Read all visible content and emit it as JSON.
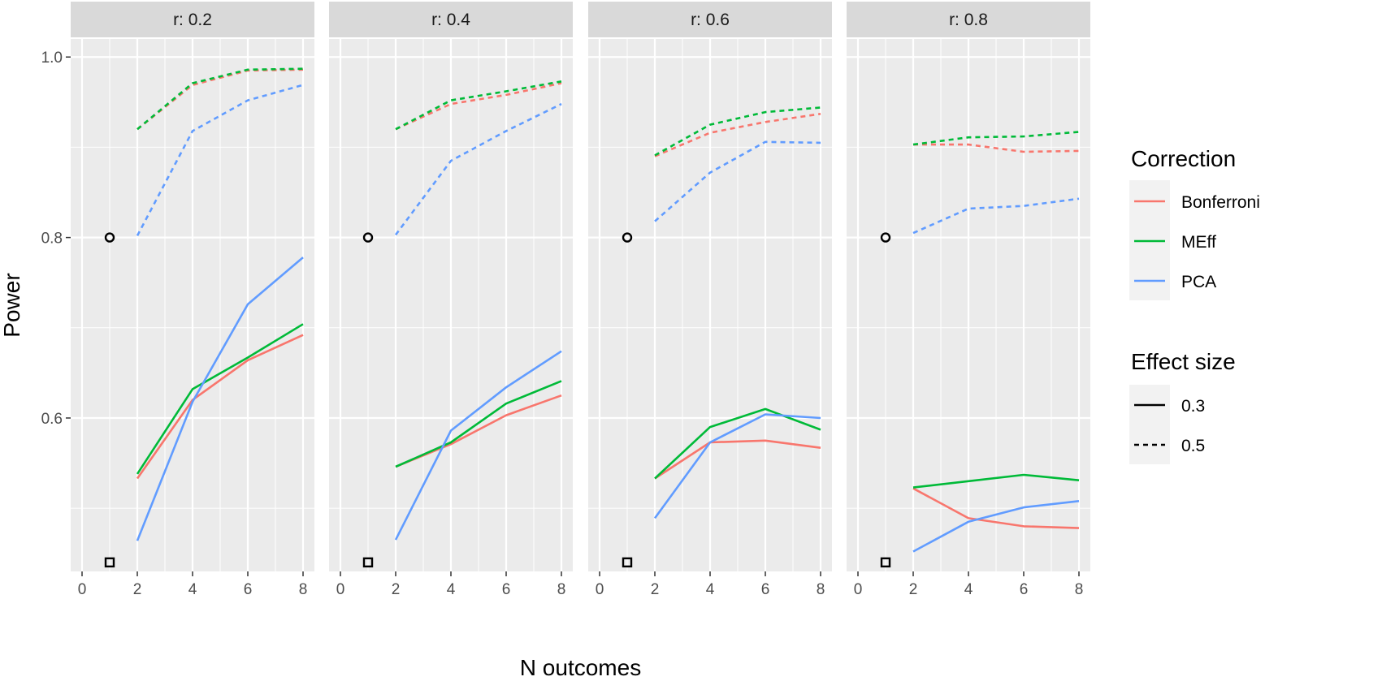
{
  "chart_data": {
    "type": "line",
    "xlabel": "N outcomes",
    "ylabel": "Power",
    "xlim": [
      0,
      8
    ],
    "ylim": [
      0.43,
      1.02
    ],
    "x_ticks": [
      0,
      2,
      4,
      6,
      8
    ],
    "y_ticks": [
      0.6,
      0.8,
      1.0
    ],
    "y_tick_labels": [
      "0.6",
      "0.8",
      "1.0"
    ],
    "grid": true,
    "legend_position": "right",
    "colors": {
      "Bonferroni": "#F8766D",
      "MEff": "#00BA38",
      "PCA": "#619CFF",
      "panel_bg": "#EBEBEB",
      "strip_bg": "#D9D9D9",
      "grid": "#FFFFFF"
    },
    "legend": {
      "correction_title": "Correction",
      "correction_items": [
        "Bonferroni",
        "MEff",
        "PCA"
      ],
      "effect_title": "Effect size",
      "effect_items": [
        {
          "label": "0.3",
          "linetype": "solid"
        },
        {
          "label": "0.5",
          "linetype": "dashed"
        }
      ]
    },
    "panels": [
      {
        "label": "r: 0.2",
        "single_outcome": [
          {
            "x": 1,
            "y": 0.8,
            "shape": "circle"
          },
          {
            "x": 1,
            "y": 0.44,
            "shape": "square"
          }
        ],
        "series": [
          {
            "correction": "Bonferroni",
            "effect": "0.3",
            "x": [
              2,
              4,
              6,
              8
            ],
            "y": [
              0.533,
              0.62,
              0.664,
              0.692
            ]
          },
          {
            "correction": "MEff",
            "effect": "0.3",
            "x": [
              2,
              4,
              6,
              8
            ],
            "y": [
              0.538,
              0.632,
              0.667,
              0.704
            ]
          },
          {
            "correction": "PCA",
            "effect": "0.3",
            "x": [
              2,
              4,
              6,
              8
            ],
            "y": [
              0.464,
              0.618,
              0.726,
              0.778
            ]
          },
          {
            "correction": "Bonferroni",
            "effect": "0.5",
            "x": [
              2,
              4,
              6,
              8
            ],
            "y": [
              0.92,
              0.969,
              0.985,
              0.986
            ]
          },
          {
            "correction": "MEff",
            "effect": "0.5",
            "x": [
              2,
              4,
              6,
              8
            ],
            "y": [
              0.92,
              0.971,
              0.986,
              0.987
            ]
          },
          {
            "correction": "PCA",
            "effect": "0.5",
            "x": [
              2,
              4,
              6,
              8
            ],
            "y": [
              0.802,
              0.918,
              0.952,
              0.969
            ]
          }
        ]
      },
      {
        "label": "r: 0.4",
        "single_outcome": [
          {
            "x": 1,
            "y": 0.8,
            "shape": "circle"
          },
          {
            "x": 1,
            "y": 0.44,
            "shape": "square"
          }
        ],
        "series": [
          {
            "correction": "Bonferroni",
            "effect": "0.3",
            "x": [
              2,
              4,
              6,
              8
            ],
            "y": [
              0.546,
              0.571,
              0.603,
              0.625
            ]
          },
          {
            "correction": "MEff",
            "effect": "0.3",
            "x": [
              2,
              4,
              6,
              8
            ],
            "y": [
              0.546,
              0.573,
              0.616,
              0.641
            ]
          },
          {
            "correction": "PCA",
            "effect": "0.3",
            "x": [
              2,
              4,
              6,
              8
            ],
            "y": [
              0.465,
              0.586,
              0.634,
              0.674
            ]
          },
          {
            "correction": "Bonferroni",
            "effect": "0.5",
            "x": [
              2,
              4,
              6,
              8
            ],
            "y": [
              0.92,
              0.948,
              0.958,
              0.971
            ]
          },
          {
            "correction": "MEff",
            "effect": "0.5",
            "x": [
              2,
              4,
              6,
              8
            ],
            "y": [
              0.92,
              0.952,
              0.962,
              0.973
            ]
          },
          {
            "correction": "PCA",
            "effect": "0.5",
            "x": [
              2,
              4,
              6,
              8
            ],
            "y": [
              0.803,
              0.885,
              0.918,
              0.948
            ]
          }
        ]
      },
      {
        "label": "r: 0.6",
        "single_outcome": [
          {
            "x": 1,
            "y": 0.8,
            "shape": "circle"
          },
          {
            "x": 1,
            "y": 0.44,
            "shape": "square"
          }
        ],
        "series": [
          {
            "correction": "Bonferroni",
            "effect": "0.3",
            "x": [
              2,
              4,
              6,
              8
            ],
            "y": [
              0.533,
              0.573,
              0.575,
              0.567
            ]
          },
          {
            "correction": "MEff",
            "effect": "0.3",
            "x": [
              2,
              4,
              6,
              8
            ],
            "y": [
              0.533,
              0.59,
              0.61,
              0.587
            ]
          },
          {
            "correction": "PCA",
            "effect": "0.3",
            "x": [
              2,
              4,
              6,
              8
            ],
            "y": [
              0.489,
              0.573,
              0.604,
              0.6
            ]
          },
          {
            "correction": "Bonferroni",
            "effect": "0.5",
            "x": [
              2,
              4,
              6,
              8
            ],
            "y": [
              0.89,
              0.916,
              0.928,
              0.937
            ]
          },
          {
            "correction": "MEff",
            "effect": "0.5",
            "x": [
              2,
              4,
              6,
              8
            ],
            "y": [
              0.891,
              0.925,
              0.939,
              0.944
            ]
          },
          {
            "correction": "PCA",
            "effect": "0.5",
            "x": [
              2,
              4,
              6,
              8
            ],
            "y": [
              0.818,
              0.872,
              0.906,
              0.905
            ]
          }
        ]
      },
      {
        "label": "r: 0.8",
        "single_outcome": [
          {
            "x": 1,
            "y": 0.8,
            "shape": "circle"
          },
          {
            "x": 1,
            "y": 0.44,
            "shape": "square"
          }
        ],
        "series": [
          {
            "correction": "Bonferroni",
            "effect": "0.3",
            "x": [
              2,
              4,
              6,
              8
            ],
            "y": [
              0.522,
              0.489,
              0.48,
              0.478
            ]
          },
          {
            "correction": "MEff",
            "effect": "0.3",
            "x": [
              2,
              4,
              6,
              8
            ],
            "y": [
              0.523,
              0.53,
              0.537,
              0.531
            ]
          },
          {
            "correction": "PCA",
            "effect": "0.3",
            "x": [
              2,
              4,
              6,
              8
            ],
            "y": [
              0.452,
              0.485,
              0.501,
              0.508
            ]
          },
          {
            "correction": "Bonferroni",
            "effect": "0.5",
            "x": [
              2,
              4,
              6,
              8
            ],
            "y": [
              0.903,
              0.903,
              0.895,
              0.896
            ]
          },
          {
            "correction": "MEff",
            "effect": "0.5",
            "x": [
              2,
              4,
              6,
              8
            ],
            "y": [
              0.903,
              0.911,
              0.912,
              0.917
            ]
          },
          {
            "correction": "PCA",
            "effect": "0.5",
            "x": [
              2,
              4,
              6,
              8
            ],
            "y": [
              0.805,
              0.832,
              0.835,
              0.843
            ]
          }
        ]
      }
    ]
  }
}
